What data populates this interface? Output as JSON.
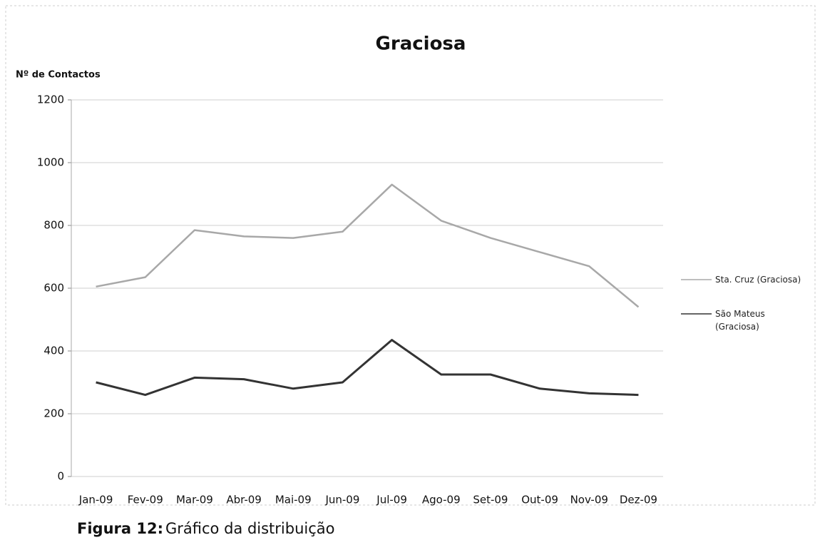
{
  "chart_data": {
    "type": "line",
    "title": "Graciosa",
    "ylabel": "Nº de Contactos",
    "categories": [
      "Jan-09",
      "Fev-09",
      "Mar-09",
      "Abr-09",
      "Mai-09",
      "Jun-09",
      "Jul-09",
      "Ago-09",
      "Set-09",
      "Out-09",
      "Nov-09",
      "Dez-09"
    ],
    "series": [
      {
        "name": "Sta. Cruz (Graciosa)",
        "color": "#a8a8a8",
        "values": [
          605,
          635,
          785,
          765,
          760,
          780,
          930,
          815,
          760,
          715,
          670,
          540
        ]
      },
      {
        "name": "São Mateus (Graciosa)",
        "color": "#333333",
        "values": [
          300,
          260,
          315,
          310,
          280,
          300,
          435,
          325,
          325,
          280,
          265,
          260
        ]
      }
    ],
    "ylim": [
      0,
      1200
    ],
    "yticks": [
      0,
      200,
      400,
      600,
      800,
      1000,
      1200
    ],
    "grid": true,
    "legend": "right",
    "caption_label": "Figura 12:",
    "caption_text": "Gráfico da distribuição"
  }
}
